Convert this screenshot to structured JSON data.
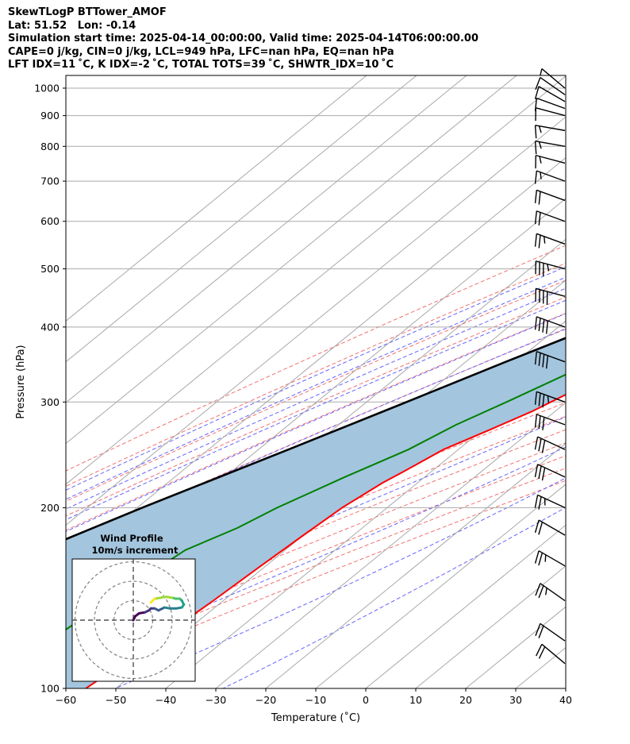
{
  "header": {
    "lines": [
      "SkewTLogP BTTower_AMOF",
      "Lat: 51.52   Lon: -0.14",
      "Simulation start time: 2025-04-14_00:00:00, Valid time: 2025-04-14T06:00:00.00",
      "CAPE=0 j/kg, CIN=0 j/kg, LCL=949 hPa, LFC=nan hPa, EQ=nan hPa",
      "LFT IDX=11 ˚C, K IDX=-2 ˚C, TOTAL TOTS=39 ˚C, SHWTR_IDX=10 ˚C"
    ]
  },
  "chart_data": {
    "type": "skewt-logp",
    "xlabel": "Temperature (˚C)",
    "ylabel": "Pressure (hPa)",
    "xlim": [
      -60,
      40
    ],
    "ylim": [
      1050,
      100
    ],
    "log_pressure": true,
    "grid": true,
    "x_ticks": [
      -60,
      -50,
      -40,
      -30,
      -20,
      -10,
      0,
      10,
      20,
      30,
      40
    ],
    "y_ticks": [
      1000,
      900,
      800,
      700,
      600,
      500,
      400,
      300,
      200,
      100
    ],
    "temperature": {
      "color": "#ff0000",
      "points": [
        [
          1000,
          9
        ],
        [
          975,
          8.5
        ],
        [
          950,
          7.5
        ],
        [
          925,
          6.3
        ],
        [
          900,
          5
        ],
        [
          850,
          2.8
        ],
        [
          800,
          1
        ],
        [
          750,
          -1
        ],
        [
          700,
          -3.5
        ],
        [
          650,
          -5.5
        ],
        [
          600,
          -8
        ],
        [
          550,
          -10
        ],
        [
          500,
          -10.5
        ],
        [
          450,
          -14
        ],
        [
          400,
          -19.5
        ],
        [
          350,
          -26
        ],
        [
          320,
          -30.5
        ],
        [
          290,
          -34.5
        ],
        [
          270,
          -38.5
        ],
        [
          250,
          -43
        ],
        [
          230,
          -45.5
        ],
        [
          220,
          -47
        ],
        [
          200,
          -49
        ],
        [
          180,
          -50
        ],
        [
          160,
          -51
        ],
        [
          140,
          -52
        ],
        [
          120,
          -53.5
        ],
        [
          100,
          -56
        ]
      ]
    },
    "dewpoint": {
      "color": "#008000",
      "points": [
        [
          1000,
          5
        ],
        [
          975,
          4.5
        ],
        [
          950,
          3
        ],
        [
          925,
          0
        ],
        [
          900,
          -3
        ],
        [
          875,
          -7
        ],
        [
          850,
          -10
        ],
        [
          800,
          -16
        ],
        [
          750,
          -23
        ],
        [
          700,
          -31
        ],
        [
          650,
          -41
        ],
        [
          630,
          -49
        ],
        [
          600,
          -43
        ],
        [
          550,
          -35
        ],
        [
          500,
          -35
        ],
        [
          480,
          -30
        ],
        [
          440,
          -27
        ],
        [
          400,
          -30
        ],
        [
          350,
          -34.5
        ],
        [
          300,
          -42
        ],
        [
          275,
          -46.5
        ],
        [
          250,
          -50
        ],
        [
          225,
          -56
        ],
        [
          200,
          -62
        ],
        [
          185,
          -65
        ],
        [
          170,
          -70
        ],
        [
          150,
          -72
        ],
        [
          120,
          -75
        ],
        [
          100,
          -79
        ]
      ]
    },
    "parcel": {
      "color": "#000000",
      "points": [
        [
          1000,
          5.5
        ],
        [
          949,
          4.2
        ],
        [
          900,
          2.5
        ],
        [
          850,
          0.5
        ],
        [
          800,
          -1.9
        ],
        [
          750,
          -4.8
        ],
        [
          700,
          -8.2
        ],
        [
          650,
          -12.2
        ],
        [
          600,
          -16.8
        ],
        [
          550,
          -22
        ],
        [
          500,
          -28
        ],
        [
          450,
          -35
        ],
        [
          400,
          -43
        ],
        [
          350,
          -52
        ],
        [
          300,
          -62
        ],
        [
          250,
          -74
        ],
        [
          200,
          -89
        ],
        [
          150,
          -107
        ],
        [
          100,
          -133
        ]
      ]
    },
    "cape_cin_fill": "#a3c5de",
    "wind_barbs": [
      {
        "p": 1000,
        "speed": 5,
        "dir": 230
      },
      {
        "p": 975,
        "speed": 10,
        "dir": 235
      },
      {
        "p": 950,
        "speed": 10,
        "dir": 240
      },
      {
        "p": 925,
        "speed": 10,
        "dir": 250
      },
      {
        "p": 900,
        "speed": 10,
        "dir": 255
      },
      {
        "p": 850,
        "speed": 15,
        "dir": 260
      },
      {
        "p": 800,
        "speed": 15,
        "dir": 260
      },
      {
        "p": 750,
        "speed": 15,
        "dir": 255
      },
      {
        "p": 700,
        "speed": 15,
        "dir": 250
      },
      {
        "p": 650,
        "speed": 20,
        "dir": 250
      },
      {
        "p": 600,
        "speed": 20,
        "dir": 250
      },
      {
        "p": 550,
        "speed": 25,
        "dir": 250
      },
      {
        "p": 500,
        "speed": 35,
        "dir": 255
      },
      {
        "p": 450,
        "speed": 40,
        "dir": 255
      },
      {
        "p": 400,
        "speed": 40,
        "dir": 250
      },
      {
        "p": 350,
        "speed": 40,
        "dir": 250
      },
      {
        "p": 300,
        "speed": 35,
        "dir": 250
      },
      {
        "p": 275,
        "speed": 30,
        "dir": 250
      },
      {
        "p": 250,
        "speed": 30,
        "dir": 245
      },
      {
        "p": 225,
        "speed": 30,
        "dir": 245
      },
      {
        "p": 200,
        "speed": 25,
        "dir": 245
      },
      {
        "p": 180,
        "speed": 20,
        "dir": 240
      },
      {
        "p": 160,
        "speed": 25,
        "dir": 240
      },
      {
        "p": 140,
        "speed": 25,
        "dir": 235
      },
      {
        "p": 120,
        "speed": 20,
        "dir": 235
      },
      {
        "p": 110,
        "speed": 20,
        "dir": 230
      }
    ],
    "inset": {
      "title": "Wind Profile",
      "subtitle": "10m/s increment",
      "rings_ms": [
        10,
        20,
        30
      ],
      "hodograph": [
        [
          0,
          0
        ],
        [
          1,
          2
        ],
        [
          3,
          3.5
        ],
        [
          6,
          4
        ],
        [
          8,
          5
        ],
        [
          9,
          6
        ],
        [
          11,
          6
        ],
        [
          13,
          5
        ],
        [
          16,
          6.5
        ],
        [
          19,
          6
        ],
        [
          22,
          6
        ],
        [
          25,
          6.5
        ],
        [
          26,
          8
        ],
        [
          25,
          10
        ],
        [
          24,
          11
        ],
        [
          22,
          11
        ],
        [
          20,
          11.5
        ],
        [
          17,
          12
        ],
        [
          14,
          11.5
        ],
        [
          11,
          11
        ],
        [
          10,
          10
        ],
        [
          9,
          9
        ]
      ]
    }
  }
}
